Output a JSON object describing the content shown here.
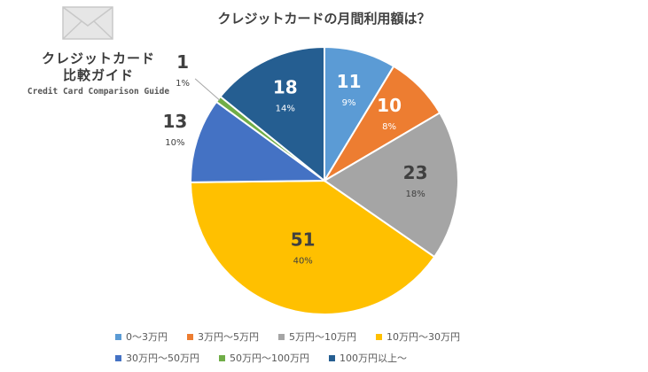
{
  "logo": {
    "line1": "クレジットカード",
    "line2": "比較ガイド",
    "line3": "Credit Card Comparison Guide"
  },
  "chart_data": {
    "type": "pie",
    "title": "クレジットカードの月間利用額は？",
    "legend_position": "bottom",
    "slices": [
      {
        "label": "0～3万円",
        "value": 11,
        "percent": "9%",
        "color": "#5B9BD5"
      },
      {
        "label": "3万円～5万円",
        "value": 10,
        "percent": "8%",
        "color": "#ED7D31"
      },
      {
        "label": "5万円～10万円",
        "value": 23,
        "percent": "18%",
        "color": "#A5A5A5"
      },
      {
        "label": "10万円～30万円",
        "value": 51,
        "percent": "40%",
        "color": "#FFC000"
      },
      {
        "label": "30万円～50万円",
        "value": 13,
        "percent": "10%",
        "color": "#4472C4"
      },
      {
        "label": "50万円～100万円",
        "value": 1,
        "percent": "1%",
        "color": "#70AD47"
      },
      {
        "label": "100万円以上～",
        "value": 18,
        "percent": "14%",
        "color": "#255E91"
      }
    ]
  }
}
